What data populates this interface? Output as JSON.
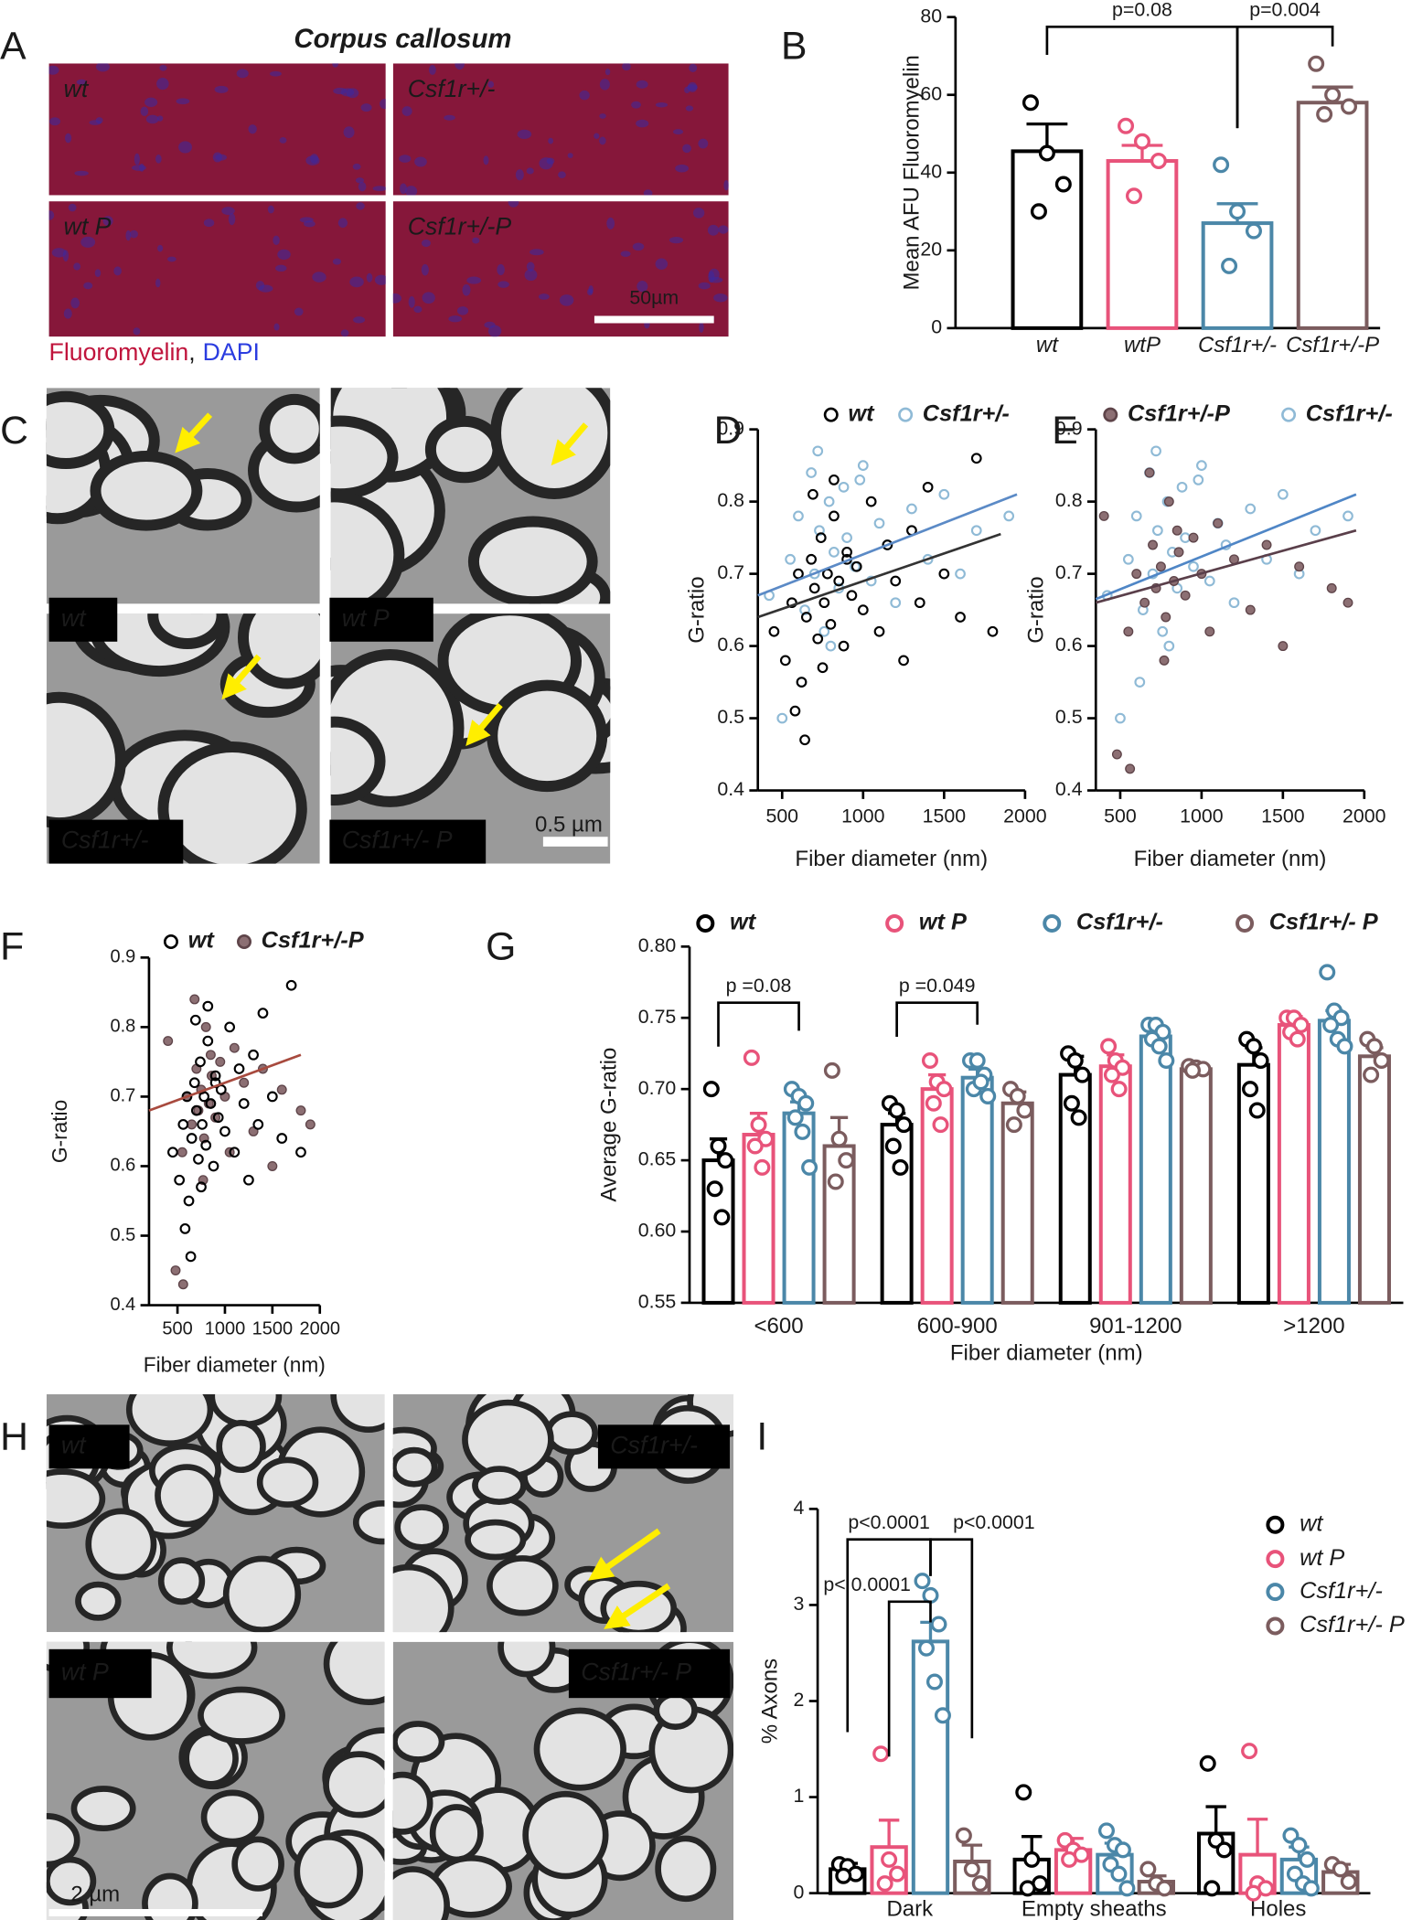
{
  "panel_letters": [
    "A",
    "B",
    "C",
    "D",
    "E",
    "F",
    "G",
    "H",
    "I"
  ],
  "image_panels": {
    "A": {
      "title": "Corpus callosum",
      "labels": [
        "wt",
        "Csf1r+/-",
        "wt P",
        "Csf1r+/-P"
      ],
      "scale_bar": "50µm",
      "caption": [
        "Fluoromyelin",
        ",",
        "DAPI"
      ]
    },
    "C": {
      "labels": [
        "wt",
        "wt P",
        "Csf1r+/-",
        "Csf1r+/- P"
      ],
      "scale_bar": "0.5 µm"
    },
    "H": {
      "labels": [
        "wt",
        "Csf1r+/-",
        "wt P",
        "Csf1r+/- P"
      ],
      "scale_bar": "2 µm"
    }
  },
  "chart_data": [
    {
      "type": "bar",
      "ylabel": "Mean AFU Fluoromyelin",
      "categories": [
        "wt",
        "wtP",
        "Csf1r+/-",
        "Csf1r+/-P"
      ],
      "values": [
        45.5,
        43,
        27,
        58
      ],
      "errors": [
        7,
        4,
        5,
        4
      ],
      "points": [
        [
          58,
          45,
          37,
          30
        ],
        [
          52,
          48,
          43,
          34
        ],
        [
          42,
          30,
          25,
          16
        ],
        [
          68,
          60,
          57,
          55
        ]
      ],
      "colors": [
        "#000000",
        "#e8537a",
        "#4b87a8",
        "#7b5c5e"
      ],
      "ylim": [
        0,
        80
      ],
      "yticks": [
        0,
        20,
        40,
        60,
        80
      ],
      "annotations": [
        "p=0.08",
        "p=0.004"
      ]
    },
    {
      "type": "scatter",
      "xlabel": "Fiber diameter (nm)",
      "ylabel": "G-ratio",
      "xlim": [
        350,
        2000
      ],
      "xticks": [
        500,
        1000,
        1500,
        2000
      ],
      "ylim": [
        0.4,
        0.9
      ],
      "yticks": [
        0.4,
        0.5,
        0.6,
        0.7,
        0.8,
        0.9
      ],
      "series": [
        {
          "name": "wt",
          "color": "#000000",
          "filled": false,
          "x": [
            450,
            520,
            560,
            600,
            620,
            650,
            680,
            700,
            720,
            740,
            760,
            780,
            800,
            820,
            850,
            880,
            900,
            930,
            960,
            1000,
            1050,
            1100,
            1150,
            1200,
            1250,
            1300,
            1350,
            1400,
            1500,
            1600,
            1700,
            1800,
            580,
            640,
            690,
            750,
            820,
            900
          ],
          "values": [
            0.62,
            0.58,
            0.66,
            0.7,
            0.55,
            0.64,
            0.72,
            0.68,
            0.61,
            0.75,
            0.66,
            0.7,
            0.63,
            0.78,
            0.69,
            0.6,
            0.73,
            0.67,
            0.71,
            0.65,
            0.8,
            0.62,
            0.74,
            0.69,
            0.58,
            0.76,
            0.66,
            0.82,
            0.7,
            0.64,
            0.86,
            0.62,
            0.51,
            0.47,
            0.81,
            0.57,
            0.83,
            0.72
          ],
          "fit_color": "#333333",
          "fit_x": [
            350,
            1850
          ],
          "fit_y": [
            0.64,
            0.755
          ]
        },
        {
          "name": "Csf1r+/-",
          "color": "#8fbad6",
          "filled": false,
          "x": [
            420,
            500,
            550,
            600,
            640,
            680,
            700,
            730,
            760,
            790,
            820,
            850,
            880,
            900,
            950,
            1000,
            1050,
            1100,
            1150,
            1200,
            1300,
            1400,
            1500,
            1600,
            1700,
            1900,
            620,
            720,
            800,
            980
          ],
          "values": [
            0.67,
            0.5,
            0.72,
            0.78,
            0.65,
            0.84,
            0.7,
            0.76,
            0.62,
            0.8,
            0.73,
            0.68,
            0.82,
            0.75,
            0.71,
            0.85,
            0.69,
            0.77,
            0.74,
            0.66,
            0.79,
            0.72,
            0.81,
            0.7,
            0.76,
            0.78,
            0.55,
            0.87,
            0.6,
            0.83
          ],
          "fit_color": "#5b8ac6",
          "fit_x": [
            350,
            1950
          ],
          "fit_y": [
            0.67,
            0.81
          ]
        }
      ]
    },
    {
      "type": "scatter",
      "xlabel": "Fiber diameter (nm)",
      "ylabel": "G-ratio",
      "xlim": [
        350,
        2000
      ],
      "xticks": [
        500,
        1000,
        1500,
        2000
      ],
      "ylim": [
        0.4,
        0.9
      ],
      "yticks": [
        0.4,
        0.5,
        0.6,
        0.7,
        0.8,
        0.9
      ],
      "series": [
        {
          "name": "Csf1r+/-P",
          "color": "#8c6f73",
          "filled": true,
          "x": [
            400,
            480,
            550,
            600,
            650,
            700,
            720,
            750,
            780,
            800,
            830,
            860,
            900,
            950,
            1000,
            1050,
            1100,
            1200,
            1300,
            1400,
            1500,
            1600,
            1800,
            1900,
            560,
            680,
            770,
            850
          ],
          "values": [
            0.78,
            0.45,
            0.62,
            0.7,
            0.66,
            0.74,
            0.68,
            0.71,
            0.64,
            0.8,
            0.69,
            0.73,
            0.67,
            0.75,
            0.7,
            0.62,
            0.77,
            0.72,
            0.65,
            0.74,
            0.6,
            0.71,
            0.68,
            0.66,
            0.43,
            0.84,
            0.58,
            0.76
          ],
          "fit_color": "#5a3f4a",
          "fit_x": [
            350,
            1950
          ],
          "fit_y": [
            0.66,
            0.76
          ]
        },
        {
          "name": "Csf1r+/-",
          "color": "#8fbad6",
          "filled": false,
          "x": [
            420,
            500,
            550,
            600,
            640,
            680,
            700,
            730,
            760,
            790,
            820,
            850,
            880,
            900,
            950,
            1000,
            1050,
            1100,
            1150,
            1200,
            1300,
            1400,
            1500,
            1600,
            1700,
            1900,
            620,
            720,
            800,
            980
          ],
          "values": [
            0.67,
            0.5,
            0.72,
            0.78,
            0.65,
            0.84,
            0.7,
            0.76,
            0.62,
            0.8,
            0.73,
            0.68,
            0.82,
            0.75,
            0.71,
            0.85,
            0.69,
            0.77,
            0.74,
            0.66,
            0.79,
            0.72,
            0.81,
            0.7,
            0.76,
            0.78,
            0.55,
            0.87,
            0.6,
            0.83
          ],
          "fit_color": "#4f86c6",
          "fit_x": [
            350,
            1950
          ],
          "fit_y": [
            0.665,
            0.81
          ]
        }
      ]
    },
    {
      "type": "scatter",
      "xlabel": "Fiber diameter (nm)",
      "ylabel": "G-ratio",
      "xlim": [
        200,
        2000
      ],
      "xticks": [
        500,
        1000,
        1500,
        2000
      ],
      "ylim": [
        0.4,
        0.9
      ],
      "yticks": [
        0.4,
        0.5,
        0.6,
        0.7,
        0.8,
        0.9
      ],
      "series": [
        {
          "name": "wt",
          "color": "#000000",
          "filled": false,
          "x": [
            450,
            520,
            560,
            600,
            620,
            650,
            680,
            700,
            720,
            740,
            760,
            780,
            800,
            820,
            850,
            880,
            900,
            930,
            960,
            1000,
            1050,
            1100,
            1150,
            1200,
            1250,
            1300,
            1350,
            1400,
            1500,
            1600,
            1700,
            1800,
            580,
            640,
            690,
            750,
            820,
            900
          ],
          "values": [
            0.62,
            0.58,
            0.66,
            0.7,
            0.55,
            0.64,
            0.72,
            0.68,
            0.61,
            0.75,
            0.66,
            0.7,
            0.63,
            0.78,
            0.69,
            0.6,
            0.73,
            0.67,
            0.71,
            0.65,
            0.8,
            0.62,
            0.74,
            0.69,
            0.58,
            0.76,
            0.66,
            0.82,
            0.7,
            0.64,
            0.86,
            0.62,
            0.51,
            0.47,
            0.81,
            0.57,
            0.83,
            0.72
          ]
        },
        {
          "name": "Csf1r+/-P",
          "color": "#8c6f73",
          "filled": true,
          "x": [
            400,
            480,
            550,
            600,
            650,
            700,
            720,
            750,
            780,
            800,
            830,
            860,
            900,
            950,
            1000,
            1050,
            1100,
            1200,
            1300,
            1400,
            1500,
            1600,
            1800,
            1900,
            560,
            680,
            770,
            850
          ],
          "values": [
            0.78,
            0.45,
            0.62,
            0.7,
            0.66,
            0.74,
            0.68,
            0.71,
            0.64,
            0.8,
            0.69,
            0.73,
            0.67,
            0.75,
            0.7,
            0.62,
            0.77,
            0.72,
            0.65,
            0.74,
            0.6,
            0.71,
            0.68,
            0.66,
            0.43,
            0.84,
            0.58,
            0.76
          ],
          "fit_color": "#a84a3e",
          "fit_x": [
            200,
            1800
          ],
          "fit_y": [
            0.68,
            0.76
          ]
        }
      ]
    },
    {
      "type": "bar",
      "xlabel": "Fiber diameter (nm)",
      "ylabel": "Average G-ratio",
      "categories": [
        "<600",
        "600-900",
        "901-1200",
        ">1200"
      ],
      "ylim": [
        0.55,
        0.8
      ],
      "yticks": [
        0.55,
        {
          "value": 0.6,
          "label": "0.60"
        },
        0.65,
        {
          "value": 0.7,
          "label": "0.70"
        },
        0.75,
        {
          "value": 0.8,
          "label": "0.80"
        }
      ],
      "legend": "top",
      "annotations": [
        "p =0.08",
        "p =0.049"
      ],
      "series": [
        {
          "name": "wt",
          "color": "#000000",
          "values": [
            0.65,
            0.675,
            0.71,
            0.717
          ],
          "errors": [
            0.015,
            0.008,
            0.013,
            0.012
          ],
          "points": [
            [
              0.7,
              0.66,
              0.65,
              0.63,
              0.61
            ],
            [
              0.69,
              0.685,
              0.675,
              0.66,
              0.645
            ],
            [
              0.725,
              0.72,
              0.71,
              0.69,
              0.68
            ],
            [
              0.735,
              0.73,
              0.72,
              0.7,
              0.685
            ]
          ]
        },
        {
          "name": "wt P",
          "color": "#e8537a",
          "values": [
            0.668,
            0.7,
            0.716,
            0.745
          ],
          "errors": [
            0.015,
            0.01,
            0.008,
            0.006
          ],
          "points": [
            [
              0.722,
              0.675,
              0.665,
              0.66,
              0.645
            ],
            [
              0.72,
              0.705,
              0.7,
              0.69,
              0.675
            ],
            [
              0.73,
              0.72,
              0.715,
              0.71,
              0.7
            ],
            [
              0.75,
              0.75,
              0.745,
              0.74,
              0.735
            ]
          ]
        },
        {
          "name": "Csf1r+/-",
          "color": "#4b87a8",
          "values": [
            0.683,
            0.708,
            0.737,
            0.748
          ],
          "errors": [
            0.008,
            0.006,
            0.006,
            0.007
          ],
          "points": [
            [
              0.7,
              0.695,
              0.69,
              0.68,
              0.67,
              0.645
            ],
            [
              0.72,
              0.72,
              0.71,
              0.7,
              0.705,
              0.695
            ],
            [
              0.745,
              0.745,
              0.74,
              0.735,
              0.73,
              0.72
            ],
            [
              0.782,
              0.755,
              0.75,
              0.745,
              0.735,
              0.73
            ]
          ]
        },
        {
          "name": "Csf1r+/- P",
          "color": "#7b5c5e",
          "values": [
            0.66,
            0.69,
            0.714,
            0.723
          ],
          "errors": [
            0.02,
            0.008,
            0.002,
            0.006
          ],
          "points": [
            [
              0.713,
              0.665,
              0.65,
              0.635
            ],
            [
              0.7,
              0.695,
              0.685,
              0.675
            ],
            [
              0.716,
              0.715,
              0.714,
              0.713
            ],
            [
              0.735,
              0.73,
              0.72,
              0.71
            ]
          ]
        }
      ]
    },
    {
      "type": "bar",
      "ylabel": "% Axons",
      "categories": [
        "Dark",
        "Empty sheaths",
        "Holes"
      ],
      "ylim": [
        0,
        4
      ],
      "yticks": [
        0,
        1,
        2,
        3,
        4
      ],
      "legend": "right",
      "annotations": [
        "p<0.0001",
        "p< 0.0001",
        "p<0.0001"
      ],
      "series": [
        {
          "name": "wt",
          "color": "#000000",
          "values": [
            0.25,
            0.35,
            0.62
          ],
          "errors": [
            0.06,
            0.24,
            0.28
          ],
          "points": [
            [
              0.3,
              0.28,
              0.2,
              0.18
            ],
            [
              1.05,
              0.35,
              0.1,
              0.05
            ],
            [
              1.35,
              0.55,
              0.45,
              0.05
            ]
          ]
        },
        {
          "name": "wt P",
          "color": "#e8537a",
          "values": [
            0.48,
            0.45,
            0.4
          ],
          "errors": [
            0.28,
            0.12,
            0.37
          ],
          "points": [
            [
              1.45,
              0.35,
              0.2,
              0.1
            ],
            [
              0.55,
              0.45,
              0.4,
              0.35
            ],
            [
              1.48,
              0.1,
              0.05,
              0.0
            ]
          ]
        },
        {
          "name": "Csf1r+/-",
          "color": "#4b87a8",
          "values": [
            2.62,
            0.4,
            0.35
          ],
          "errors": [
            0.2,
            0.12,
            0.13
          ],
          "points": [
            [
              3.25,
              3.1,
              2.8,
              2.55,
              2.2,
              1.85
            ],
            [
              0.65,
              0.5,
              0.45,
              0.3,
              0.2,
              0.05
            ],
            [
              0.6,
              0.5,
              0.35,
              0.2,
              0.1,
              0.05
            ]
          ]
        },
        {
          "name": "Csf1r+/- P",
          "color": "#7b5c5e",
          "values": [
            0.33,
            0.12,
            0.22
          ],
          "errors": [
            0.17,
            0.06,
            0.08
          ],
          "points": [
            [
              0.6,
              0.25,
              0.1
            ],
            [
              0.25,
              0.1,
              0.05
            ],
            [
              0.3,
              0.25,
              0.12
            ]
          ]
        }
      ]
    }
  ]
}
